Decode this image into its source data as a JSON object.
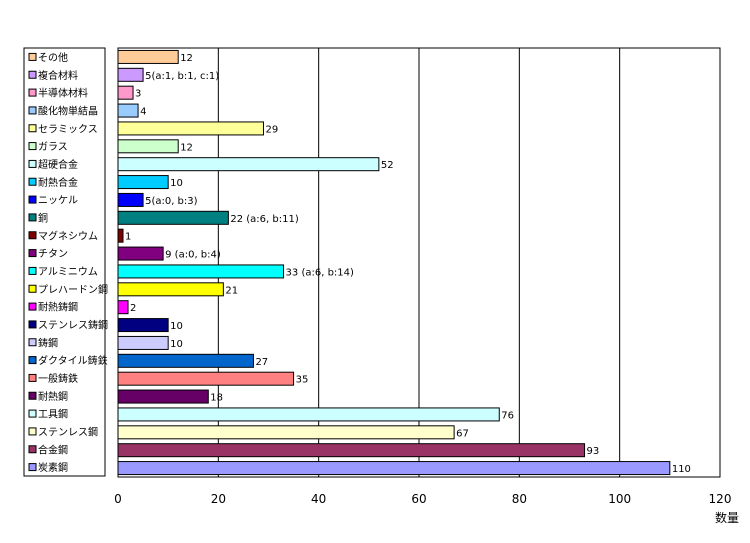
{
  "chart_data": {
    "type": "bar",
    "orientation": "horizontal",
    "categories": [
      "その他",
      "複合材料",
      "半導体材料",
      "酸化物単結晶",
      "セラミックス",
      "ガラス",
      "超硬合金",
      "耐熱合金",
      "ニッケル",
      "銅",
      "マグネシウム",
      "チタン",
      "アルミニウム",
      "プレハードン鋼",
      "耐熱鋳鋼",
      "ステンレス鋳鋼",
      "鋳鋼",
      "ダクタイル鋳鉄",
      "一般鋳鉄",
      "耐熱鋼",
      "工具鋼",
      "ステンレス鋼",
      "合金鋼",
      "炭素鋼"
    ],
    "values": [
      12,
      5,
      3,
      4,
      29,
      12,
      52,
      10,
      5,
      22,
      1,
      9,
      33,
      21,
      2,
      10,
      10,
      27,
      35,
      18,
      76,
      67,
      93,
      110
    ],
    "value_labels": [
      "12",
      "5(a:1, b:1, c:1)",
      "3",
      "4",
      "29",
      "12",
      "52",
      "10",
      "5(a:0, b:3)",
      "22 (a:6, b:11)",
      "1",
      "9 (a:0, b:4)",
      "33 (a:6, b:14)",
      "21",
      "2",
      "10",
      "10",
      "27",
      "35",
      "18",
      "76",
      "67",
      "93",
      "110"
    ],
    "colors": [
      "#FFCC99",
      "#CC99FF",
      "#FF99CC",
      "#99CCFF",
      "#FFFF99",
      "#CCFFCC",
      "#CCFFFF",
      "#00CCFF",
      "#0000FF",
      "#008080",
      "#800000",
      "#800080",
      "#00FFFF",
      "#FFFF00",
      "#FF00FF",
      "#000080",
      "#CCCCFF",
      "#0066CC",
      "#FF8080",
      "#660066",
      "#CCFFFF",
      "#FFFFCC",
      "#993366",
      "#9999FF"
    ],
    "xlim": [
      0,
      120
    ],
    "xticks": [
      "0",
      "20",
      "40",
      "60",
      "80",
      "100",
      "120"
    ],
    "xlabel": "数量",
    "grid": true,
    "legend_position": "left"
  }
}
